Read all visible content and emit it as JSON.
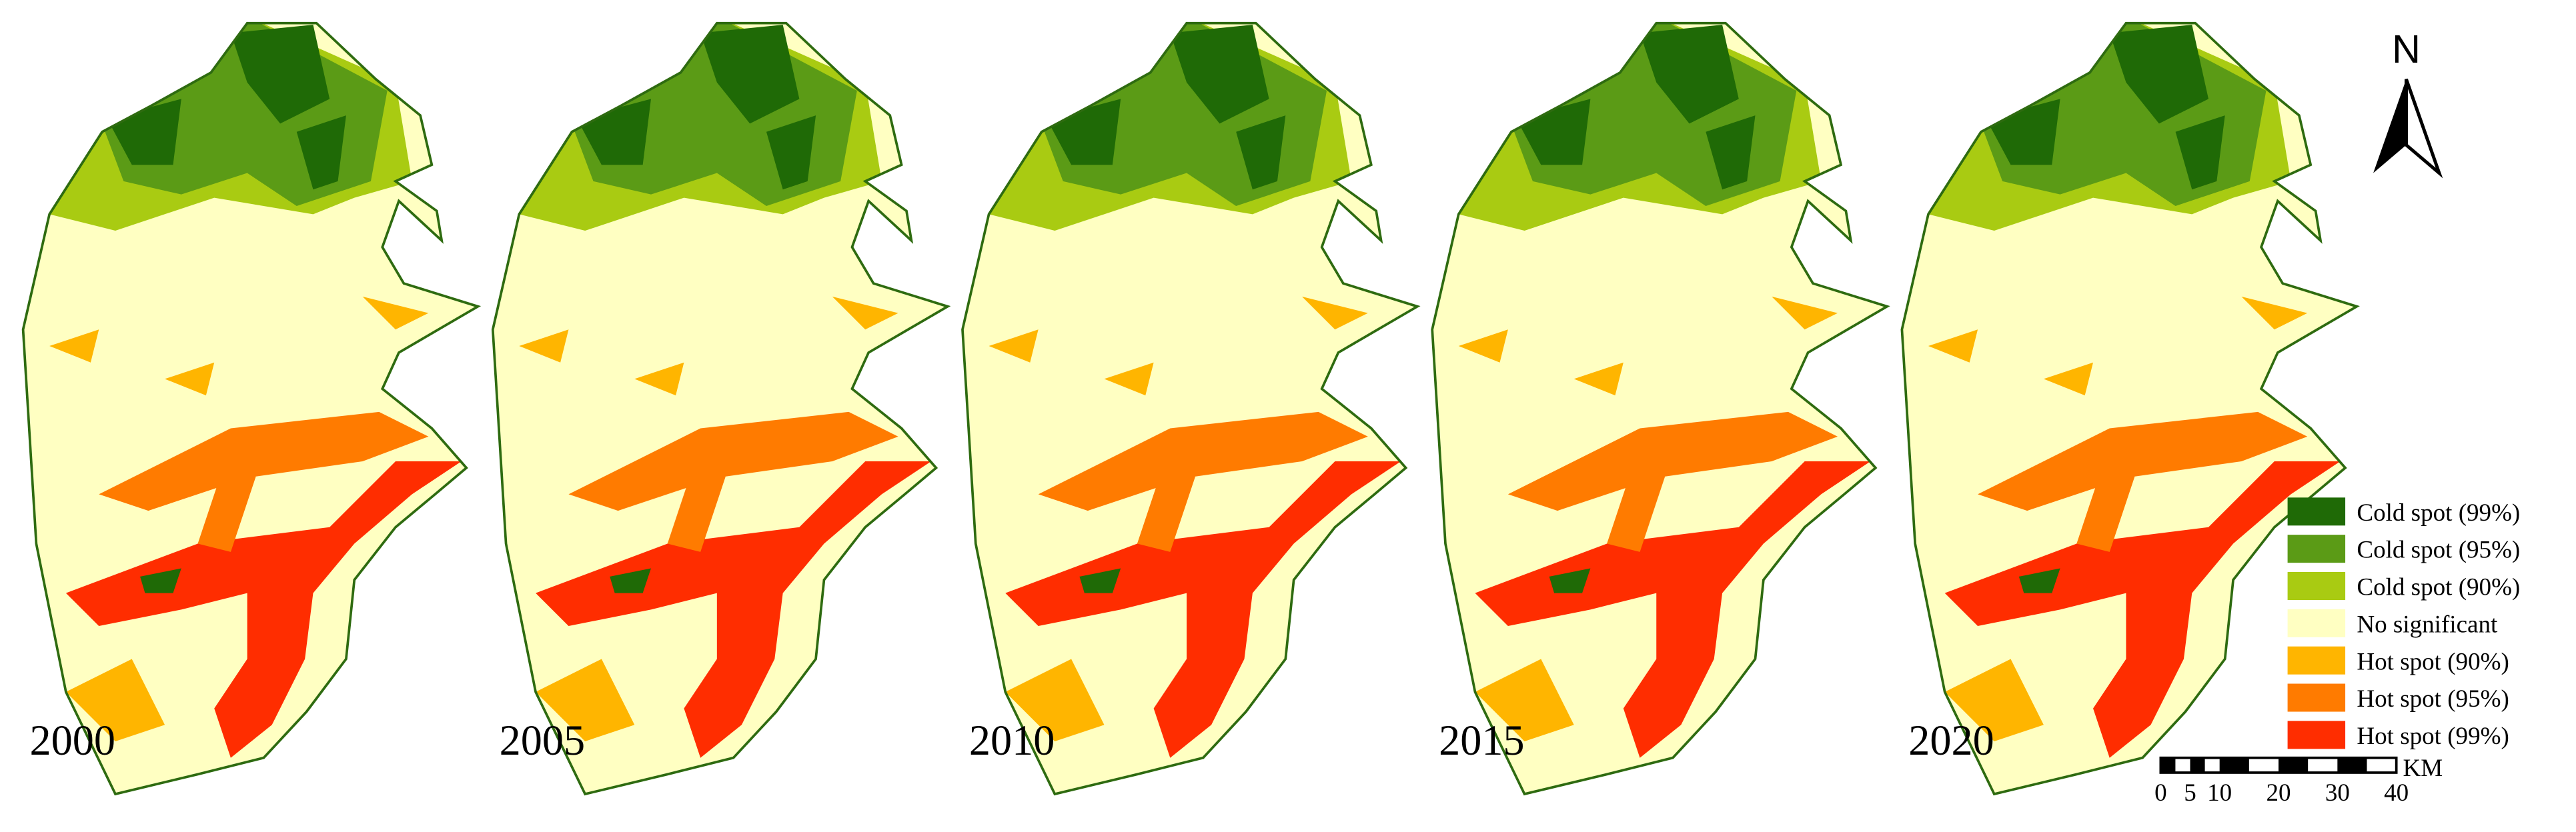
{
  "panels": [
    {
      "year": "2000"
    },
    {
      "year": "2005"
    },
    {
      "year": "2010"
    },
    {
      "year": "2015"
    },
    {
      "year": "2020"
    }
  ],
  "legend": [
    {
      "label": "Cold spot (99%)",
      "color": "#1f6a06"
    },
    {
      "label": "Cold spot (95%)",
      "color": "#5b9b16"
    },
    {
      "label": "Cold spot (90%)",
      "color": "#a9cb12"
    },
    {
      "label": "No significant",
      "color": "#ffffc2"
    },
    {
      "label": "Hot spot (90%)",
      "color": "#ffb500"
    },
    {
      "label": "Hot spot (95%)",
      "color": "#ff7b00"
    },
    {
      "label": "Hot spot (99%)",
      "color": "#ff2d00"
    }
  ],
  "north": "N",
  "scale_bar": {
    "unit": "KM",
    "labels": [
      "0",
      "5",
      "10",
      "20",
      "30",
      "40"
    ]
  }
}
